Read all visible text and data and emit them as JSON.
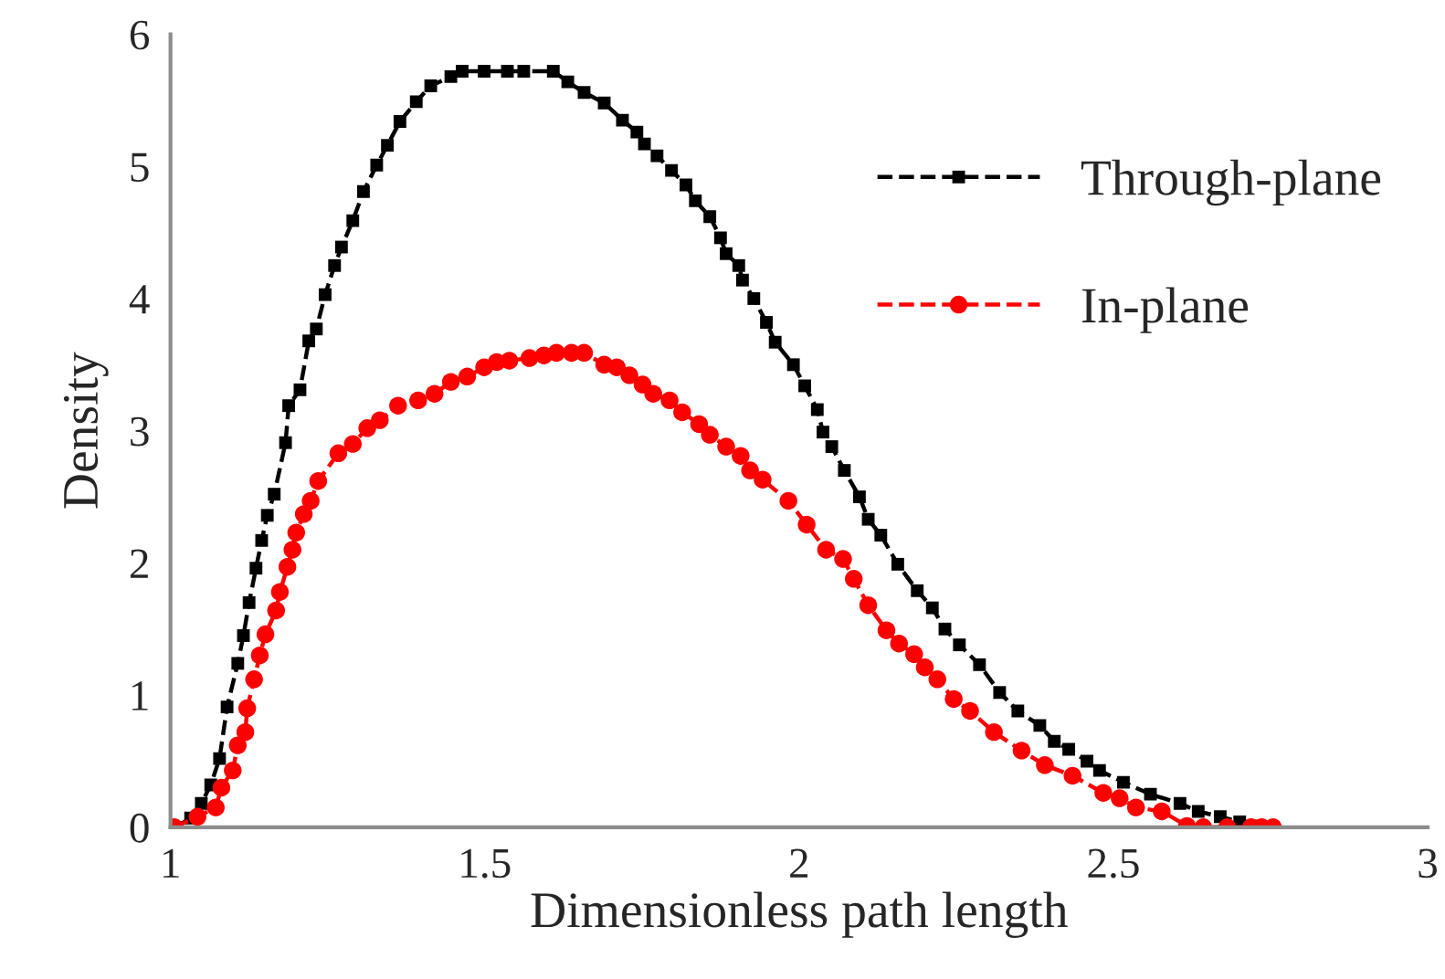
{
  "chart_data": {
    "type": "line",
    "xlabel": "Dimensionless path length",
    "ylabel": "Density",
    "xlim": [
      1,
      3
    ],
    "xticks": [
      1,
      1.5,
      2,
      2.5,
      3
    ],
    "ylim": [
      0,
      6
    ],
    "yticks": [
      0,
      1,
      2,
      3,
      4,
      5,
      6
    ],
    "grid": false,
    "legend": "top right",
    "series": [
      {
        "name": "Through-plane",
        "color": "#000000",
        "marker": "square",
        "line_style": "dashed",
        "x": [
          1.009,
          1.032,
          1.049,
          1.064,
          1.078,
          1.09,
          1.107,
          1.116,
          1.125,
          1.136,
          1.145,
          1.154,
          1.165,
          1.183,
          1.188,
          1.206,
          1.22,
          1.232,
          1.246,
          1.261,
          1.272,
          1.29,
          1.307,
          1.328,
          1.345,
          1.365,
          1.391,
          1.414,
          1.446,
          1.464,
          1.499,
          1.536,
          1.562,
          1.609,
          1.632,
          1.658,
          1.69,
          1.719,
          1.742,
          1.754,
          1.774,
          1.797,
          1.82,
          1.835,
          1.858,
          1.875,
          1.884,
          1.904,
          1.91,
          1.928,
          1.948,
          1.962,
          1.991,
          2.009,
          2.029,
          2.038,
          2.052,
          2.072,
          2.096,
          2.11,
          2.13,
          2.157,
          2.188,
          2.212,
          2.232,
          2.255,
          2.287,
          2.319,
          2.348,
          2.383,
          2.406,
          2.429,
          2.458,
          2.478,
          2.516,
          2.559,
          2.606,
          2.635,
          2.67,
          2.701,
          2.73,
          2.751
        ],
        "values": [
          0,
          0.07,
          0.18,
          0.32,
          0.52,
          0.91,
          1.24,
          1.45,
          1.7,
          1.96,
          2.17,
          2.36,
          2.52,
          2.91,
          3.19,
          3.31,
          3.68,
          3.77,
          4.03,
          4.25,
          4.39,
          4.59,
          4.81,
          5.01,
          5.16,
          5.34,
          5.49,
          5.61,
          5.68,
          5.72,
          5.72,
          5.72,
          5.72,
          5.72,
          5.64,
          5.56,
          5.48,
          5.35,
          5.26,
          5.17,
          5.08,
          4.97,
          4.86,
          4.74,
          4.62,
          4.46,
          4.34,
          4.25,
          4.14,
          4.0,
          3.82,
          3.67,
          3.5,
          3.34,
          3.16,
          2.99,
          2.88,
          2.7,
          2.5,
          2.33,
          2.21,
          1.99,
          1.79,
          1.66,
          1.5,
          1.38,
          1.23,
          1.02,
          0.88,
          0.77,
          0.65,
          0.59,
          0.5,
          0.43,
          0.34,
          0.25,
          0.18,
          0.12,
          0.08,
          0.04,
          0.01,
          0
        ]
      },
      {
        "name": "In-plane",
        "color": "#ff0000",
        "marker": "circle",
        "line_style": "dashed",
        "x": [
          1.006,
          1.043,
          1.072,
          1.081,
          1.099,
          1.107,
          1.119,
          1.122,
          1.133,
          1.142,
          1.151,
          1.168,
          1.174,
          1.186,
          1.194,
          1.2,
          1.212,
          1.223,
          1.235,
          1.267,
          1.29,
          1.313,
          1.333,
          1.362,
          1.394,
          1.42,
          1.446,
          1.472,
          1.499,
          1.519,
          1.539,
          1.571,
          1.594,
          1.614,
          1.638,
          1.658,
          1.69,
          1.71,
          1.73,
          1.751,
          1.768,
          1.794,
          1.814,
          1.841,
          1.858,
          1.884,
          1.907,
          1.922,
          1.942,
          1.983,
          2.012,
          2.043,
          2.07,
          2.087,
          2.11,
          2.139,
          2.159,
          2.183,
          2.2,
          2.22,
          2.246,
          2.272,
          2.31,
          2.354,
          2.391,
          2.435,
          2.484,
          2.51,
          2.536,
          2.577,
          2.617,
          2.643,
          2.681,
          2.719,
          2.736,
          2.754
        ],
        "values": [
          0,
          0.08,
          0.15,
          0.3,
          0.43,
          0.62,
          0.72,
          0.9,
          1.12,
          1.3,
          1.46,
          1.64,
          1.78,
          1.97,
          2.1,
          2.23,
          2.37,
          2.47,
          2.62,
          2.83,
          2.9,
          3.02,
          3.08,
          3.19,
          3.23,
          3.28,
          3.37,
          3.41,
          3.48,
          3.52,
          3.53,
          3.55,
          3.57,
          3.59,
          3.59,
          3.59,
          3.5,
          3.48,
          3.42,
          3.35,
          3.28,
          3.23,
          3.14,
          3.05,
          2.97,
          2.88,
          2.81,
          2.7,
          2.63,
          2.47,
          2.29,
          2.1,
          2.03,
          1.88,
          1.68,
          1.49,
          1.39,
          1.31,
          1.21,
          1.12,
          0.97,
          0.88,
          0.72,
          0.58,
          0.47,
          0.39,
          0.26,
          0.22,
          0.15,
          0.12,
          0.01,
          0,
          0,
          0,
          0,
          0
        ]
      }
    ]
  }
}
